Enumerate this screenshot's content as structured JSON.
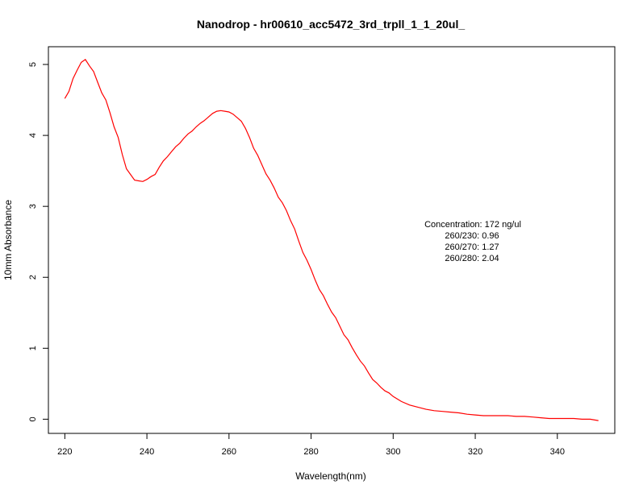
{
  "chart_data": {
    "type": "line",
    "title": "Nanodrop - hr00610_acc5472_3rd_trpll_1_1_20ul_",
    "xlabel": "Wavelength(nm)",
    "ylabel": "10mm Absorbance",
    "xlim": [
      216,
      354
    ],
    "ylim": [
      -0.2,
      5.25
    ],
    "xticks": [
      220,
      240,
      260,
      280,
      300,
      320,
      340
    ],
    "yticks": [
      0,
      1,
      2,
      3,
      4,
      5
    ],
    "grid": false,
    "legend": "none",
    "series": [
      {
        "color": "#ff0000",
        "x": [
          220,
          221,
          222,
          223,
          224,
          225,
          226,
          227,
          228,
          229,
          230,
          231,
          232,
          233,
          234,
          235,
          236,
          237,
          238,
          239,
          240,
          241,
          242,
          243,
          244,
          245,
          246,
          247,
          248,
          249,
          250,
          251,
          252,
          253,
          254,
          255,
          256,
          257,
          258,
          259,
          260,
          261,
          262,
          263,
          264,
          265,
          266,
          267,
          268,
          269,
          270,
          271,
          272,
          273,
          274,
          275,
          276,
          277,
          278,
          279,
          280,
          281,
          282,
          283,
          284,
          285,
          286,
          287,
          288,
          289,
          290,
          291,
          292,
          293,
          294,
          295,
          296,
          297,
          298,
          299,
          300,
          302,
          304,
          306,
          308,
          310,
          312,
          314,
          316,
          318,
          320,
          322,
          324,
          326,
          328,
          330,
          332,
          334,
          336,
          338,
          340,
          342,
          344,
          346,
          348,
          350
        ],
        "y": [
          4.52,
          4.62,
          4.8,
          4.92,
          5.03,
          5.07,
          4.98,
          4.9,
          4.75,
          4.6,
          4.5,
          4.32,
          4.12,
          3.97,
          3.73,
          3.53,
          3.45,
          3.37,
          3.36,
          3.35,
          3.38,
          3.42,
          3.45,
          3.55,
          3.64,
          3.7,
          3.77,
          3.84,
          3.89,
          3.96,
          4.02,
          4.06,
          4.12,
          4.17,
          4.21,
          4.26,
          4.31,
          4.34,
          4.35,
          4.34,
          4.33,
          4.3,
          4.25,
          4.2,
          4.1,
          3.97,
          3.82,
          3.72,
          3.59,
          3.46,
          3.37,
          3.26,
          3.13,
          3.05,
          2.94,
          2.8,
          2.68,
          2.51,
          2.35,
          2.24,
          2.11,
          1.96,
          1.83,
          1.74,
          1.62,
          1.51,
          1.43,
          1.31,
          1.19,
          1.12,
          1.01,
          0.91,
          0.82,
          0.75,
          0.65,
          0.56,
          0.51,
          0.45,
          0.4,
          0.37,
          0.32,
          0.25,
          0.2,
          0.17,
          0.14,
          0.12,
          0.11,
          0.1,
          0.09,
          0.07,
          0.06,
          0.05,
          0.05,
          0.05,
          0.05,
          0.04,
          0.04,
          0.03,
          0.02,
          0.01,
          0.01,
          0.01,
          0.01,
          0.0,
          0.0,
          -0.02
        ]
      }
    ],
    "annotations": [
      "Concentration: 172 ng/ul",
      "260/230: 0.96",
      "260/270: 1.27",
      "260/280: 2.04"
    ]
  }
}
